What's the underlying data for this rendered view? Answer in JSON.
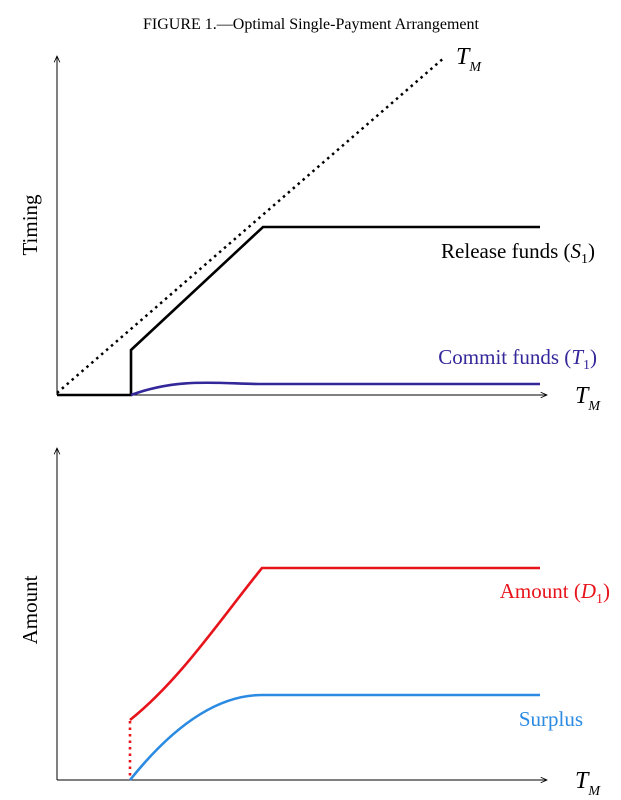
{
  "title": {
    "prefix": "FIGURE 1.",
    "text": "—Optimal Single-Payment Arrangement"
  },
  "top_panel": {
    "y_label": "Timing",
    "x_label": {
      "symbol": "T",
      "subscript": "M"
    },
    "diagonal_label": {
      "symbol": "T",
      "subscript": "M"
    },
    "release_label": {
      "text": "Release funds (",
      "symbol": "S",
      "subscript": "1",
      "close": ")"
    },
    "commit_label": {
      "text": "Commit funds (",
      "symbol": "T",
      "subscript": "1",
      "close": ")"
    }
  },
  "bottom_panel": {
    "y_label": "Amount",
    "x_label": {
      "symbol": "T",
      "subscript": "M"
    },
    "amount_label": {
      "text": "Amount (",
      "symbol": "D",
      "subscript": "1",
      "close": ")"
    },
    "surplus_label": "Surplus"
  }
}
